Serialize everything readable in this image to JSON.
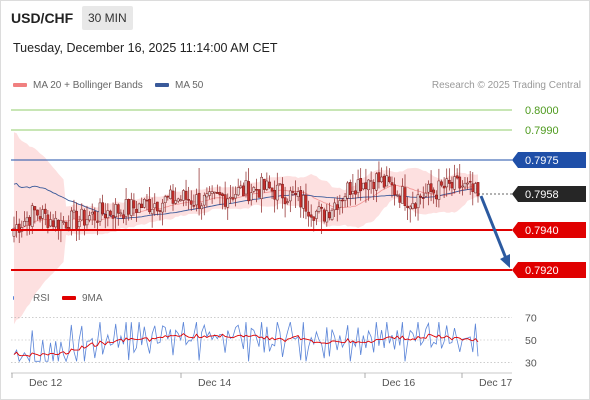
{
  "header": {
    "symbol": "USD/CHF",
    "timeframe": "30 MIN",
    "datetime": "Tuesday, December 16, 2025 11:14:00 AM CET"
  },
  "legend": {
    "ma20_label": "MA 20 + Bollinger Bands",
    "ma50_label": "MA 50",
    "credit": "Research © 2025 Trading Central",
    "rsi_label": "RSI",
    "rsi_ma_label": "9MA"
  },
  "colors": {
    "up": "#e8e5e5",
    "down": "#c9302c",
    "bollinger_fill": "#fde0e0",
    "ma20": "#f08080",
    "ma50": "#3a5a9a",
    "resistance": "#1f4fa8",
    "target_green": "#6dbb3a",
    "support": "#e00000",
    "arrow": "#2c5aa0",
    "rsi": "#5b85d8",
    "rsi_ma": "#e00000"
  },
  "chart_data": [
    {
      "type": "candlestick",
      "series_name": "USD/CHF",
      "ylim": [
        0.7914,
        0.8006
      ],
      "x_ticks": [
        "Dec 12",
        "Dec 14",
        "Dec 16",
        "Dec 17"
      ],
      "levels": [
        {
          "value": 0.8,
          "label": "0.8000",
          "kind": "target"
        },
        {
          "value": 0.799,
          "label": "0.7990",
          "kind": "target"
        },
        {
          "value": 0.7975,
          "label": "0.7975",
          "kind": "resistance"
        },
        {
          "value": 0.7958,
          "label": "0.7958",
          "kind": "last"
        },
        {
          "value": 0.794,
          "label": "0.7940",
          "kind": "support"
        },
        {
          "value": 0.792,
          "label": "0.7920",
          "kind": "support"
        }
      ],
      "last_price": 0.7958,
      "forecast_arrow": {
        "from": 0.7957,
        "to": 0.7921
      }
    },
    {
      "type": "line",
      "series_name": "RSI",
      "ylim": [
        25,
        75
      ],
      "y_ticks": [
        70,
        50,
        30
      ]
    }
  ]
}
